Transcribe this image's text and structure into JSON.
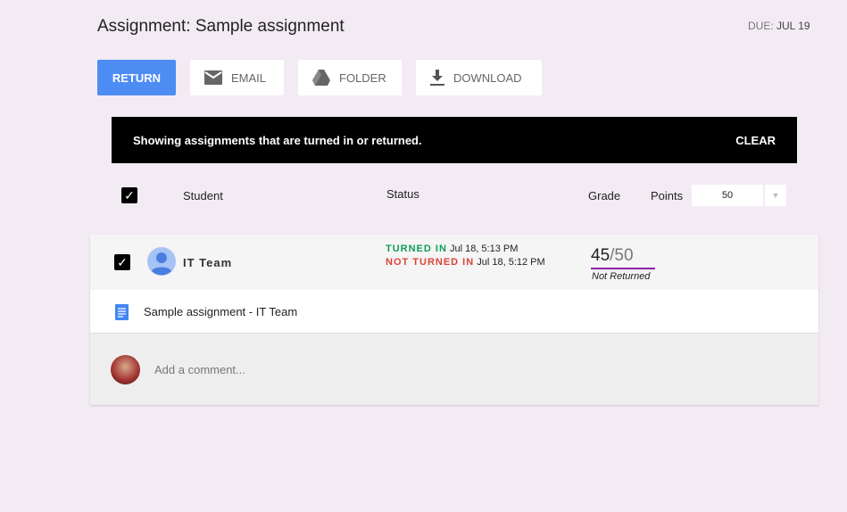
{
  "header": {
    "title": "Assignment: Sample assignment",
    "due_label": "DUE:",
    "due_date": "JUL 19"
  },
  "toolbar": {
    "return": "RETURN",
    "email": "EMAIL",
    "folder": "FOLDER",
    "download": "DOWNLOAD"
  },
  "banner": {
    "text": "Showing assignments that are turned in or returned.",
    "clear": "CLEAR"
  },
  "table": {
    "student": "Student",
    "status": "Status",
    "grade": "Grade",
    "points": "Points",
    "points_value": "50"
  },
  "row": {
    "student": "IT Team",
    "status": [
      {
        "label": "TURNED IN",
        "time": "Jul 18, 5:13 PM",
        "color": "#0f9d58"
      },
      {
        "label": "NOT TURNED IN",
        "time": "Jul 18, 5:12 PM",
        "color": "#db4437"
      }
    ],
    "grade": "45",
    "grade_total": "/50",
    "grade_status": "Not Returned",
    "file": "Sample assignment - IT Team",
    "comment_placeholder": "Add a comment..."
  },
  "colors": {
    "accent": "#4d8df3",
    "grade_underline": "#8e24aa"
  }
}
